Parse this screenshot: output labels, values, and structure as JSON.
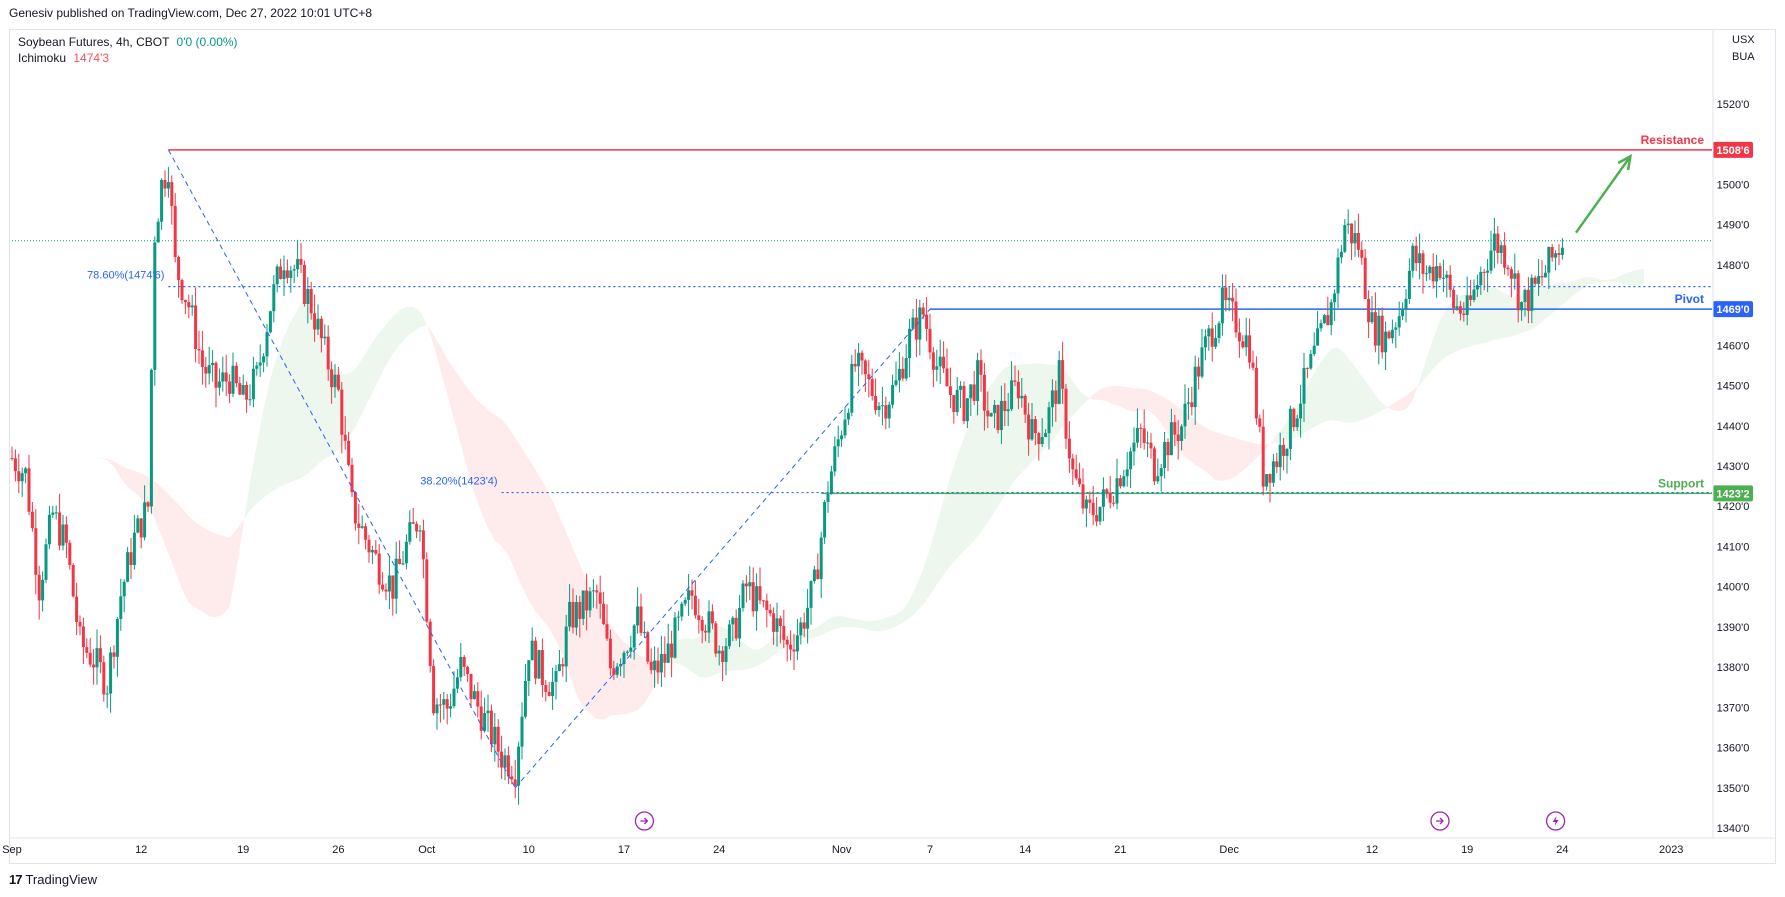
{
  "publisher": "Genesiv published on TradingView.com, Dec 27, 2022 10:01 UTC+8",
  "legend": {
    "symbol": "Soybean Futures, 4h, CBOT",
    "change": "0'0 (0.00%)",
    "indicator": "Ichimoku",
    "indicator_value": "1474'3"
  },
  "price_unit": [
    "USX",
    "BUA"
  ],
  "brand": "TradingView",
  "colors": {
    "up": "#089981",
    "down": "#f23645",
    "resistance": "#f23645",
    "pivot": "#2962ff",
    "support": "#4caf50",
    "fib": "#2962ff",
    "cloud_bull": "#4caf50",
    "cloud_bear": "#f23645",
    "arrow": "#4caf50",
    "event_icon": "#9c27b0"
  },
  "icons": [
    "dividend-arrow-icon",
    "dividend-arrow-icon",
    "lightning-icon",
    "tradingview-logo-icon"
  ],
  "chart_data": {
    "type": "candlestick",
    "title": "Soybean Futures, 4h, CBOT",
    "xlabel": "",
    "ylabel": "",
    "ylim": [
      1340,
      1530
    ],
    "y_ticks": [
      {
        "value": 1520,
        "label": "1520'0"
      },
      {
        "value": 1500,
        "label": "1500'0"
      },
      {
        "value": 1490,
        "label": "1490'0"
      },
      {
        "value": 1480,
        "label": "1480'0"
      },
      {
        "value": 1460,
        "label": "1460'0"
      },
      {
        "value": 1450,
        "label": "1450'0"
      },
      {
        "value": 1440,
        "label": "1440'0"
      },
      {
        "value": 1430,
        "label": "1430'0"
      },
      {
        "value": 1420,
        "label": "1420'0"
      },
      {
        "value": 1410,
        "label": "1410'0"
      },
      {
        "value": 1400,
        "label": "1400'0"
      },
      {
        "value": 1390,
        "label": "1390'0"
      },
      {
        "value": 1380,
        "label": "1380'0"
      },
      {
        "value": 1370,
        "label": "1370'0"
      },
      {
        "value": 1360,
        "label": "1360'0"
      },
      {
        "value": 1350,
        "label": "1350'0"
      },
      {
        "value": 1340,
        "label": "1340'0"
      }
    ],
    "x_range": [
      0,
      125
    ],
    "x_ticks": [
      {
        "x": 0,
        "label": "Sep"
      },
      {
        "x": 9.5,
        "label": "12"
      },
      {
        "x": 17,
        "label": "19"
      },
      {
        "x": 24,
        "label": "26"
      },
      {
        "x": 30.5,
        "label": "Oct"
      },
      {
        "x": 38,
        "label": "10"
      },
      {
        "x": 45,
        "label": "17"
      },
      {
        "x": 52,
        "label": "24"
      },
      {
        "x": 61,
        "label": "Nov"
      },
      {
        "x": 67.5,
        "label": "7"
      },
      {
        "x": 74.5,
        "label": "14"
      },
      {
        "x": 81.5,
        "label": "21"
      },
      {
        "x": 89.5,
        "label": "Dec"
      },
      {
        "x": 100,
        "label": "12"
      },
      {
        "x": 107,
        "label": "19"
      },
      {
        "x": 114,
        "label": "24"
      },
      {
        "x": 122,
        "label": "2023"
      }
    ],
    "close_path": [
      [
        0,
        1432
      ],
      [
        1,
        1428
      ],
      [
        2,
        1400
      ],
      [
        3,
        1418
      ],
      [
        4,
        1410
      ],
      [
        5,
        1386
      ],
      [
        6,
        1382
      ],
      [
        7,
        1376
      ],
      [
        8,
        1398
      ],
      [
        9,
        1412
      ],
      [
        10,
        1420
      ],
      [
        10.5,
        1488
      ],
      [
        11,
        1500
      ],
      [
        11.5,
        1505
      ],
      [
        12,
        1480
      ],
      [
        13,
        1470
      ],
      [
        14,
        1455
      ],
      [
        15,
        1450
      ],
      [
        16,
        1452
      ],
      [
        17,
        1446
      ],
      [
        18,
        1452
      ],
      [
        19,
        1470
      ],
      [
        20,
        1482
      ],
      [
        21,
        1478
      ],
      [
        22,
        1470
      ],
      [
        23,
        1458
      ],
      [
        24,
        1448
      ],
      [
        25,
        1420
      ],
      [
        26,
        1412
      ],
      [
        27,
        1405
      ],
      [
        28,
        1400
      ],
      [
        29,
        1410
      ],
      [
        30,
        1418
      ],
      [
        31,
        1372
      ],
      [
        32,
        1370
      ],
      [
        33,
        1380
      ],
      [
        34,
        1372
      ],
      [
        35,
        1365
      ],
      [
        36,
        1358
      ],
      [
        37,
        1355
      ],
      [
        38,
        1385
      ],
      [
        39,
        1378
      ],
      [
        40,
        1375
      ],
      [
        41,
        1392
      ],
      [
        42,
        1395
      ],
      [
        43,
        1398
      ],
      [
        44,
        1380
      ],
      [
        45,
        1385
      ],
      [
        46,
        1392
      ],
      [
        47,
        1378
      ],
      [
        48,
        1382
      ],
      [
        49,
        1390
      ],
      [
        50,
        1398
      ],
      [
        51,
        1392
      ],
      [
        52,
        1385
      ],
      [
        53,
        1388
      ],
      [
        54,
        1400
      ],
      [
        55,
        1395
      ],
      [
        56,
        1392
      ],
      [
        57,
        1385
      ],
      [
        58,
        1390
      ],
      [
        59,
        1400
      ],
      [
        60,
        1425
      ],
      [
        61,
        1440
      ],
      [
        62,
        1455
      ],
      [
        63,
        1450
      ],
      [
        64,
        1445
      ],
      [
        65,
        1450
      ],
      [
        66,
        1462
      ],
      [
        67,
        1468
      ],
      [
        68,
        1455
      ],
      [
        69,
        1448
      ],
      [
        70,
        1445
      ],
      [
        71,
        1452
      ],
      [
        72,
        1440
      ],
      [
        73,
        1445
      ],
      [
        74,
        1450
      ],
      [
        75,
        1438
      ],
      [
        76,
        1440
      ],
      [
        77,
        1452
      ],
      [
        78,
        1428
      ],
      [
        79,
        1418
      ],
      [
        80,
        1420
      ],
      [
        81,
        1425
      ],
      [
        82,
        1432
      ],
      [
        83,
        1438
      ],
      [
        84,
        1430
      ],
      [
        85,
        1436
      ],
      [
        86,
        1440
      ],
      [
        87,
        1452
      ],
      [
        88,
        1462
      ],
      [
        89,
        1470
      ],
      [
        90,
        1466
      ],
      [
        91,
        1460
      ],
      [
        92,
        1428
      ],
      [
        93,
        1432
      ],
      [
        94,
        1440
      ],
      [
        95,
        1450
      ],
      [
        96,
        1460
      ],
      [
        97,
        1470
      ],
      [
        98,
        1490
      ],
      [
        99,
        1485
      ],
      [
        100,
        1465
      ],
      [
        101,
        1462
      ],
      [
        102,
        1468
      ],
      [
        103,
        1482
      ],
      [
        104,
        1478
      ],
      [
        105,
        1480
      ],
      [
        106,
        1470
      ],
      [
        107,
        1468
      ],
      [
        108,
        1478
      ],
      [
        109,
        1486
      ],
      [
        110,
        1482
      ],
      [
        111,
        1470
      ],
      [
        112,
        1474
      ],
      [
        113,
        1480
      ],
      [
        114,
        1486
      ]
    ],
    "series": [
      {
        "name": "Resistance",
        "level": 1508.6,
        "label": "1508'6"
      },
      {
        "name": "Pivot",
        "level": 1469.0,
        "label": "1469'0"
      },
      {
        "name": "Support",
        "level": 1423.2,
        "label": "1423'2"
      }
    ],
    "fib_levels": [
      {
        "label": "78.60%(1474'6)",
        "value": 1474.6
      },
      {
        "label": "38.20%(1423'4)",
        "value": 1423.4
      }
    ],
    "swing_points": [
      {
        "x": 11.5,
        "y": 1508.6
      },
      {
        "x": 37,
        "y": 1350
      },
      {
        "x": 67.5,
        "y": 1469
      }
    ],
    "current_price": 1486,
    "grid": false,
    "legend_position": "top-left"
  }
}
